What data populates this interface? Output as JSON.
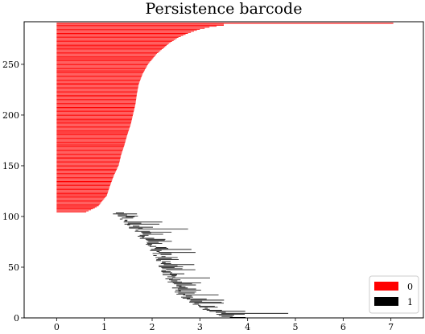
{
  "chart_data": {
    "type": "barcode",
    "title": "Persistence barcode",
    "xlabel": "",
    "ylabel": "",
    "xlim": [
      -0.68,
      7.68
    ],
    "ylim": [
      0,
      292
    ],
    "x_ticks": [
      0,
      1,
      2,
      3,
      4,
      5,
      6,
      7
    ],
    "y_ticks": [
      0,
      50,
      100,
      150,
      200,
      250
    ],
    "grid": false,
    "legend_position": "lower-right",
    "series": [
      {
        "name": "0",
        "color": "#ff0000",
        "index_range": [
          104,
          290
        ],
        "death_profile": [
          [
            104,
            0.62
          ],
          [
            106,
            0.72
          ],
          [
            110,
            0.88
          ],
          [
            115,
            0.96
          ],
          [
            120,
            1.05
          ],
          [
            130,
            1.12
          ],
          [
            140,
            1.2
          ],
          [
            150,
            1.3
          ],
          [
            160,
            1.35
          ],
          [
            170,
            1.42
          ],
          [
            180,
            1.48
          ],
          [
            190,
            1.55
          ],
          [
            200,
            1.6
          ],
          [
            210,
            1.65
          ],
          [
            220,
            1.68
          ],
          [
            230,
            1.72
          ],
          [
            240,
            1.8
          ],
          [
            250,
            1.92
          ],
          [
            260,
            2.1
          ],
          [
            266,
            2.25
          ],
          [
            270,
            2.35
          ],
          [
            276,
            2.55
          ],
          [
            280,
            2.75
          ],
          [
            284,
            3.0
          ],
          [
            286,
            3.2
          ],
          [
            288,
            3.5
          ],
          [
            289,
            3.5
          ]
        ],
        "longest_bar": {
          "index": 290,
          "birth": 0,
          "death": 7.05
        }
      },
      {
        "name": "1",
        "color": "#000000",
        "index_range": [
          0,
          103
        ],
        "birth_profile": [
          [
            0,
            3.6
          ],
          [
            4,
            3.3
          ],
          [
            8,
            3.1
          ],
          [
            12,
            2.9
          ],
          [
            18,
            2.7
          ],
          [
            25,
            2.55
          ],
          [
            35,
            2.4
          ],
          [
            50,
            2.2
          ],
          [
            60,
            2.12
          ],
          [
            70,
            1.98
          ],
          [
            80,
            1.78
          ],
          [
            90,
            1.55
          ],
          [
            100,
            1.35
          ],
          [
            103,
            1.2
          ]
        ],
        "length_range": [
          0.05,
          0.7
        ],
        "long_bars": [
          {
            "index": 4,
            "birth": 3.45,
            "death": 4.85
          },
          {
            "index": 6,
            "birth": 3.2,
            "death": 3.95
          }
        ]
      }
    ]
  }
}
